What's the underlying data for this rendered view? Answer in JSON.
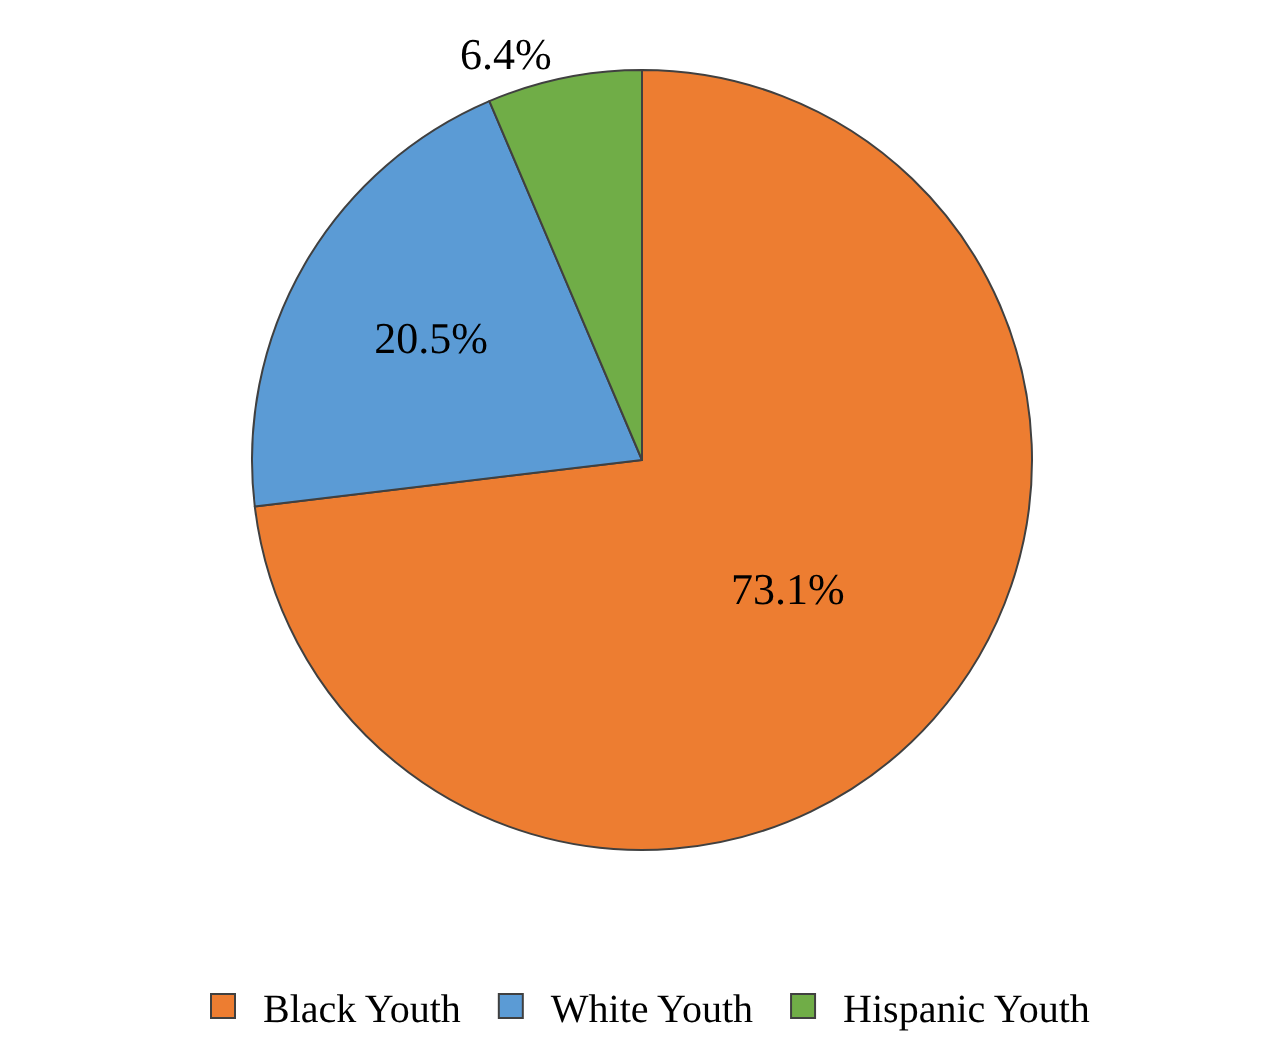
{
  "chart_data": {
    "type": "pie",
    "categories": [
      "Black Youth",
      "White Youth",
      "Hispanic Youth"
    ],
    "values": [
      73.1,
      20.5,
      6.4
    ],
    "colors": [
      "#ed7d31",
      "#5b9bd5",
      "#70ad47"
    ],
    "value_labels": [
      "73.1%",
      "20.5%",
      "6.4%"
    ],
    "legend": "bottom"
  }
}
